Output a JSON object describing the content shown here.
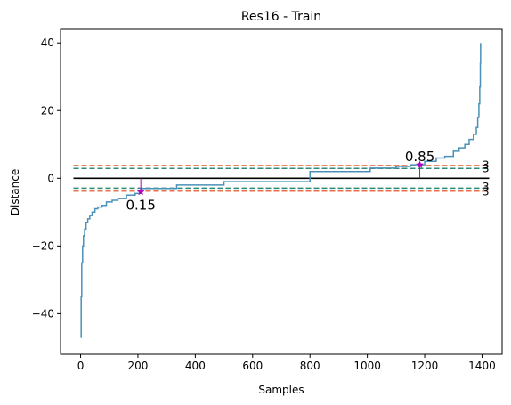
{
  "chart_data": {
    "type": "line",
    "title": "Res16 - Train",
    "xlabel": "Samples",
    "ylabel": "Distance",
    "xlim": [
      -70,
      1470
    ],
    "ylim": [
      -52,
      44
    ],
    "xticks": [
      0,
      200,
      400,
      600,
      800,
      1000,
      1200,
      1400
    ],
    "yticks": [
      -40,
      -20,
      0,
      20,
      40
    ],
    "xtick_labels": [
      "0",
      "200",
      "400",
      "600",
      "800",
      "1000",
      "1200",
      "1400"
    ],
    "ytick_labels": [
      "−40",
      "−20",
      "0",
      "20",
      "40"
    ],
    "grid": false,
    "series": [
      {
        "color": "#4a90b8",
        "x": [
          0,
          2,
          4,
          7,
          10,
          14,
          19,
          25,
          32,
          40,
          50,
          60,
          75,
          90,
          110,
          130,
          160,
          190,
          210,
          335,
          500,
          800,
          820,
          1010,
          1100,
          1150,
          1200,
          1240,
          1270,
          1300,
          1320,
          1340,
          1355,
          1370,
          1380,
          1385,
          1389,
          1392,
          1394,
          1395
        ],
        "y": [
          -47,
          -35,
          -25,
          -20,
          -17,
          -15,
          -13,
          -12,
          -11,
          -10,
          -9,
          -8.5,
          -8,
          -7,
          -6.5,
          -6,
          -5,
          -4.5,
          -3,
          -2,
          -1,
          2,
          2,
          3,
          3.5,
          4,
          5,
          6,
          6.5,
          8,
          9,
          10,
          11.5,
          13,
          15,
          18,
          22,
          27,
          34,
          40
        ]
      }
    ],
    "reference_lines": [
      {
        "y": 0,
        "color": "#000000",
        "style": "solid"
      },
      {
        "y": 3.8,
        "color": "#e8704f",
        "style": "dashed"
      },
      {
        "y": 2.9,
        "color": "#2e8b7a",
        "style": "dashed"
      },
      {
        "y": -2.9,
        "color": "#2e8b7a",
        "style": "dashed"
      },
      {
        "y": -3.8,
        "color": "#e8704f",
        "style": "dashed"
      }
    ],
    "right_labels": [
      {
        "y": 3.9,
        "text": "3"
      },
      {
        "y": 2.8,
        "text": "3"
      },
      {
        "y": -2.6,
        "text": "3"
      },
      {
        "y": -4.0,
        "text": "3"
      }
    ],
    "markers": [
      {
        "x": 210,
        "y": -4,
        "label": "0.15",
        "color": "#b000c0"
      },
      {
        "x": 1183,
        "y": 4,
        "label": "0.85",
        "color": "#b000c0"
      }
    ]
  }
}
